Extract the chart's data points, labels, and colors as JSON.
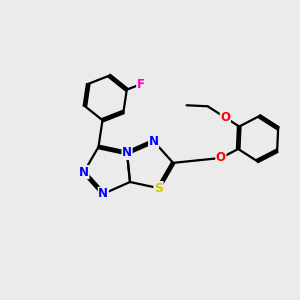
{
  "background_color": "#ebebeb",
  "atom_colors": {
    "N": "#0000ff",
    "S": "#cccc00",
    "O": "#ff0000",
    "F": "#ff00cc",
    "C": "#000000"
  },
  "bond_color": "#000000",
  "figsize": [
    3.0,
    3.0
  ],
  "dpi": 100,
  "lw": 1.6,
  "lw2": 1.3,
  "sep": 0.1,
  "font_size": 8.5
}
